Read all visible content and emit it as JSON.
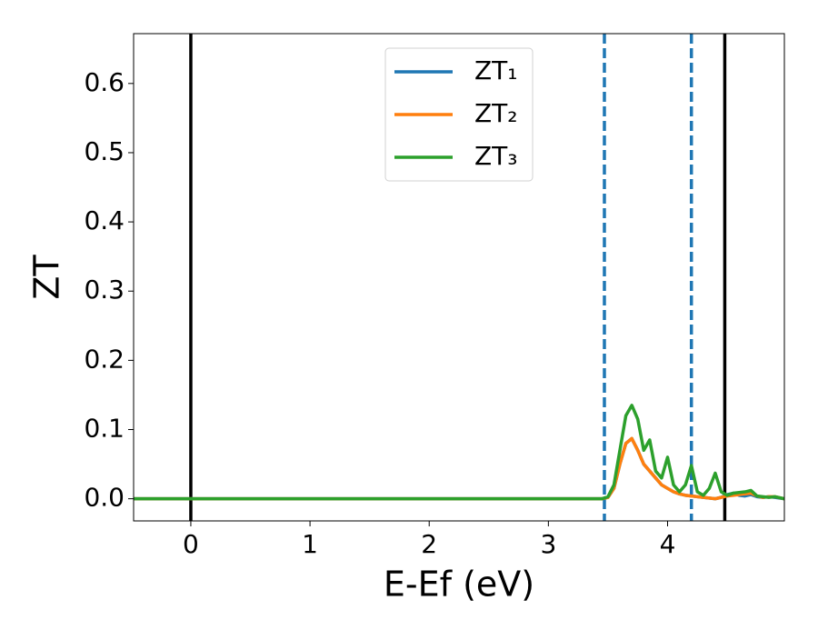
{
  "chart_data": {
    "type": "line",
    "xlabel": "E-Ef (eV)",
    "ylabel": "ZT",
    "x": [
      -0.48,
      3.45,
      3.5,
      3.55,
      3.6,
      3.65,
      3.7,
      3.75,
      3.8,
      3.85,
      3.9,
      3.95,
      4.0,
      4.05,
      4.1,
      4.15,
      4.2,
      4.25,
      4.3,
      4.35,
      4.4,
      4.45,
      4.5,
      4.55,
      4.6,
      4.65,
      4.7,
      4.75,
      4.8,
      4.85,
      4.9,
      4.98
    ],
    "series": [
      {
        "name": "ZT₁",
        "color": "#1f77b4",
        "values": [
          0,
          0,
          0.002,
          0.015,
          0.05,
          0.08,
          0.087,
          0.07,
          0.05,
          0.04,
          0.03,
          0.02,
          0.015,
          0.01,
          0.007,
          0.005,
          0.004,
          0.003,
          0.002,
          0.001,
          0,
          0.002,
          0.006,
          0.008,
          0.005,
          0.004,
          0.006,
          0.003,
          0.002,
          0.003,
          0.002,
          0
        ]
      },
      {
        "name": "ZT₂",
        "color": "#ff7f0e",
        "values": [
          0,
          0,
          0.002,
          0.015,
          0.05,
          0.08,
          0.087,
          0.07,
          0.05,
          0.04,
          0.03,
          0.02,
          0.015,
          0.01,
          0.007,
          0.005,
          0.004,
          0.003,
          0.002,
          0.001,
          0,
          0.002,
          0.004,
          0.005,
          0.006,
          0.007,
          0.008,
          0.004,
          0.002,
          0.003,
          0.003,
          0
        ]
      },
      {
        "name": "ZT₃",
        "color": "#2ca02c",
        "values": [
          0,
          0,
          0.003,
          0.02,
          0.07,
          0.12,
          0.135,
          0.115,
          0.07,
          0.085,
          0.04,
          0.03,
          0.06,
          0.02,
          0.01,
          0.02,
          0.048,
          0.01,
          0.005,
          0.015,
          0.037,
          0.01,
          0.005,
          0.008,
          0.009,
          0.01,
          0.012,
          0.004,
          0.003,
          0.002,
          0.003,
          0
        ]
      }
    ],
    "vlines": [
      {
        "x": 0,
        "color": "#000000",
        "dashed": false
      },
      {
        "x": 4.48,
        "color": "#000000",
        "dashed": false
      },
      {
        "x": 3.47,
        "color": "#1f77b4",
        "dashed": true
      },
      {
        "x": 4.2,
        "color": "#1f77b4",
        "dashed": true
      }
    ],
    "xlim": [
      -0.48,
      4.98
    ],
    "xticks": [
      0,
      1,
      2,
      3,
      4
    ],
    "ylim": [
      -0.032,
      0.672
    ],
    "yticks": [
      {
        "value": 0,
        "label": "0.0"
      },
      0.1,
      0.2,
      0.3,
      0.4,
      0.5,
      0.6
    ],
    "legend": "upper center",
    "grid": false
  }
}
